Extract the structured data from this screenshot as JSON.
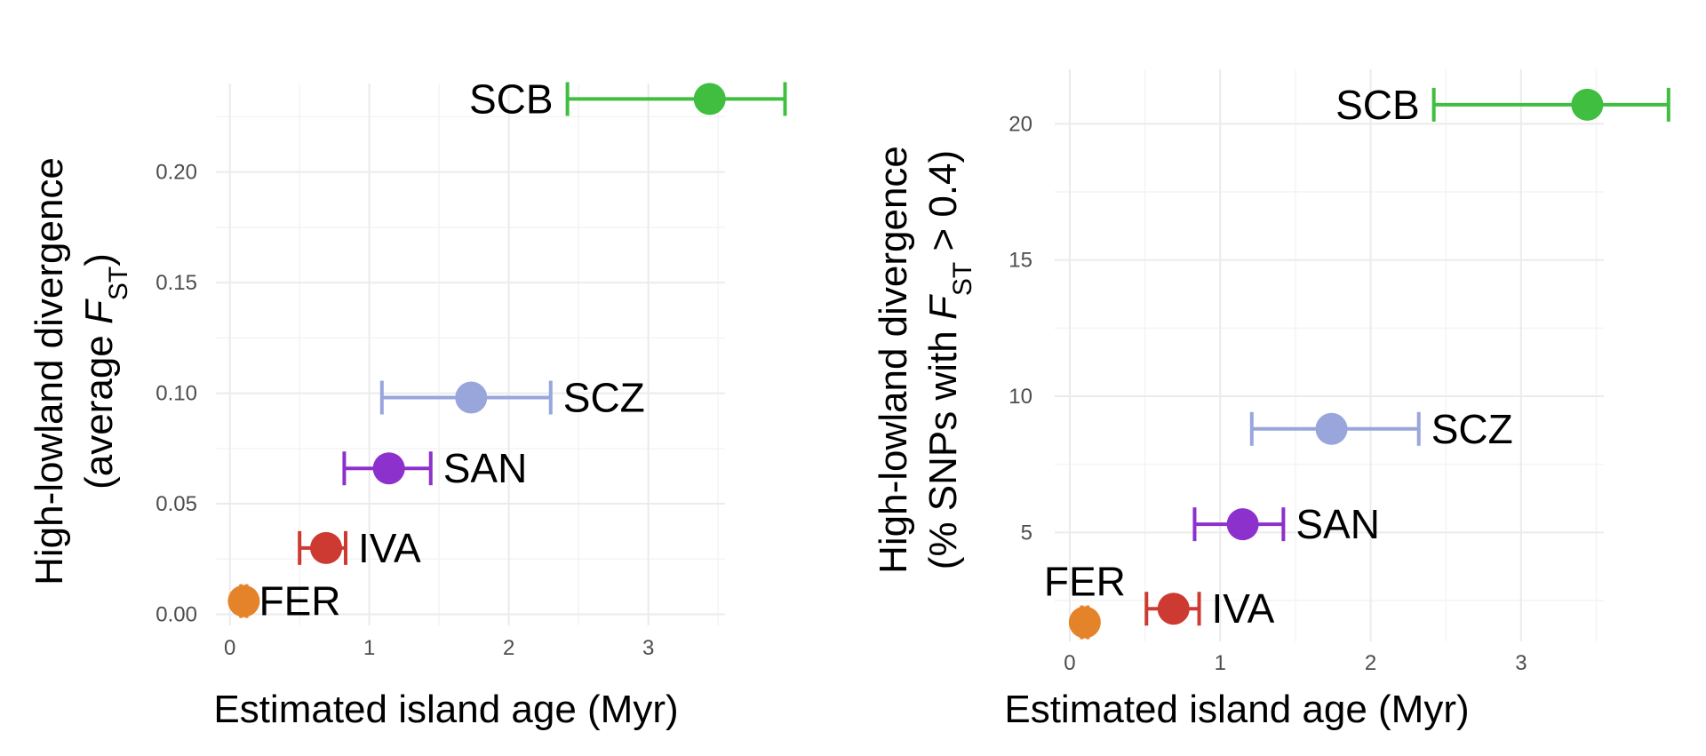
{
  "chart_data": [
    {
      "type": "scatter",
      "xlabel": "Estimated island age (Myr)",
      "ylabel_line1": "High-lowland divergence",
      "ylabel_line2_pre": "(average ",
      "ylabel_F": "F",
      "ylabel_sub": "ST",
      "ylabel_line2_post": ")",
      "xlim": [
        -0.1,
        3.55
      ],
      "ylim": [
        -0.005,
        0.24
      ],
      "x_ticks": [
        0,
        1,
        2,
        3
      ],
      "x_tick_labels": [
        "0",
        "1",
        "2",
        "3"
      ],
      "y_ticks": [
        0.0,
        0.05,
        0.1,
        0.15,
        0.2
      ],
      "y_tick_labels": [
        "0.00",
        "0.05",
        "0.10",
        "0.15",
        "0.20"
      ],
      "points": [
        {
          "label": "SCB",
          "x": 3.44,
          "xmin": 2.42,
          "xmax": 3.98,
          "y": 0.233,
          "color": "#3fbe3f",
          "label_side": "left"
        },
        {
          "label": "SCZ",
          "x": 1.73,
          "xmin": 1.09,
          "xmax": 2.3,
          "y": 0.098,
          "color": "#99a6dc",
          "label_side": "right"
        },
        {
          "label": "SAN",
          "x": 1.14,
          "xmin": 0.82,
          "xmax": 1.44,
          "y": 0.066,
          "color": "#8d31cc",
          "label_side": "right"
        },
        {
          "label": "IVA",
          "x": 0.69,
          "xmin": 0.5,
          "xmax": 0.83,
          "y": 0.03,
          "color": "#cc3a32",
          "label_side": "right"
        },
        {
          "label": "FER",
          "x": 0.1,
          "xmin": 0.08,
          "xmax": 0.12,
          "y": 0.006,
          "color": "#e5832a",
          "label_side": "right"
        }
      ]
    },
    {
      "type": "scatter",
      "xlabel": "Estimated island age (Myr)",
      "ylabel_line1": "High-lowland divergence",
      "ylabel_line2_pre": "(% SNPs with ",
      "ylabel_F": "F",
      "ylabel_sub": "ST",
      "ylabel_line2_post": " > 0.4)",
      "xlim": [
        -0.1,
        3.55
      ],
      "ylim": [
        1,
        22
      ],
      "x_ticks": [
        0,
        1,
        2,
        3
      ],
      "x_tick_labels": [
        "0",
        "1",
        "2",
        "3"
      ],
      "y_ticks": [
        5,
        10,
        15,
        20
      ],
      "y_tick_labels": [
        "5",
        "10",
        "15",
        "20"
      ],
      "points": [
        {
          "label": "SCB",
          "x": 3.44,
          "xmin": 2.42,
          "xmax": 3.98,
          "y": 20.7,
          "color": "#3fbe3f",
          "label_side": "left"
        },
        {
          "label": "SCZ",
          "x": 1.74,
          "xmin": 1.21,
          "xmax": 2.32,
          "y": 8.8,
          "color": "#99a6dc",
          "label_side": "right"
        },
        {
          "label": "SAN",
          "x": 1.15,
          "xmin": 0.83,
          "xmax": 1.42,
          "y": 5.3,
          "color": "#8d31cc",
          "label_side": "right"
        },
        {
          "label": "IVA",
          "x": 0.69,
          "xmin": 0.51,
          "xmax": 0.86,
          "y": 2.2,
          "color": "#cc3a32",
          "label_side": "right"
        },
        {
          "label": "FER",
          "x": 0.1,
          "xmin": 0.08,
          "xmax": 0.12,
          "y": 1.7,
          "color": "#e5832a",
          "label_side": "above"
        }
      ]
    }
  ]
}
